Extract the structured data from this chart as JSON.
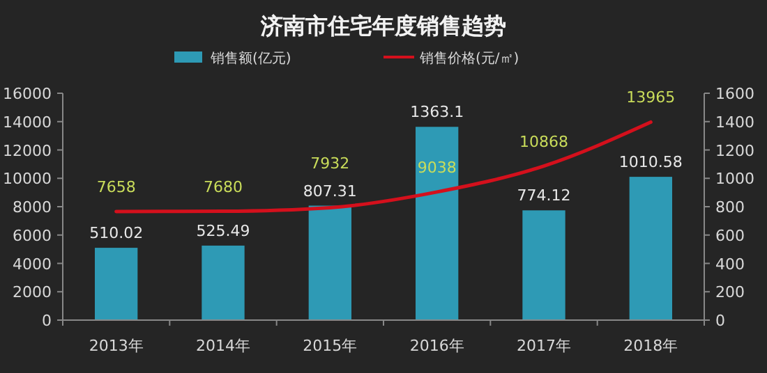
{
  "chart_data": {
    "type": "bar",
    "title": "济南市住宅年度销售趋势",
    "categories": [
      "2013年",
      "2014年",
      "2015年",
      "2016年",
      "2017年",
      "2018年"
    ],
    "series": [
      {
        "name": "销售额(亿元)",
        "axis": "y2",
        "color": "#2e9ab5",
        "values": [
          510.02,
          525.49,
          807.31,
          1363.1,
          774.12,
          1010.58
        ]
      },
      {
        "name": "销售价格(元/㎡)",
        "type": "line",
        "color": "#d4101c",
        "values": [
          7658,
          7680,
          7932,
          9038,
          10868,
          13965
        ]
      }
    ],
    "ylim": [
      0,
      16000
    ],
    "yticks": [
      0,
      2000,
      4000,
      6000,
      8000,
      10000,
      12000,
      14000,
      16000
    ],
    "y2lim": [
      0,
      1600
    ],
    "y2ticks": [
      0,
      200,
      400,
      600,
      800,
      1000,
      1200,
      1400,
      1600
    ],
    "data_labels": true,
    "legend": "top",
    "grid": false,
    "marker": "none",
    "line_style": "solid"
  }
}
